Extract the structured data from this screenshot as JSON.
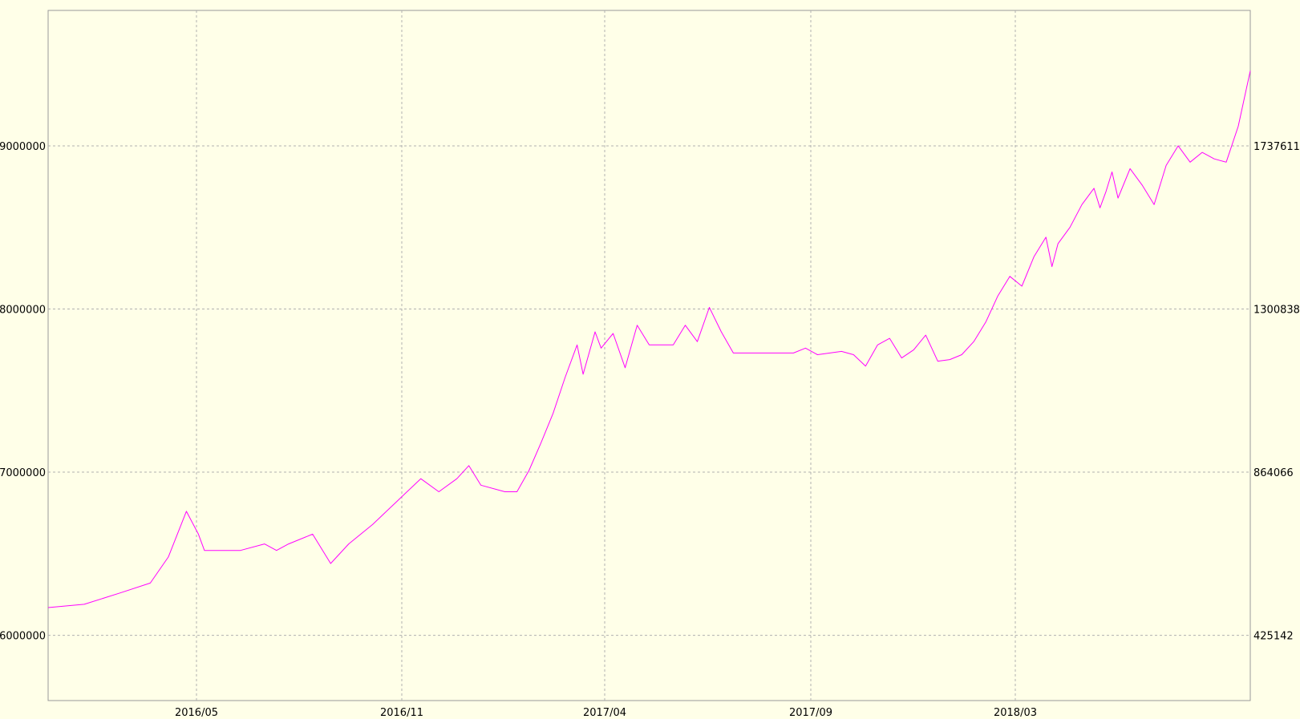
{
  "chart_data": {
    "type": "line",
    "title": "",
    "xlabel": "",
    "ylabel": "",
    "grid": true,
    "x_ticks": [
      "2016/05",
      "2016/11",
      "2017/04",
      "2017/09",
      "2018/03"
    ],
    "y_left": {
      "ticks": [
        6000000,
        7000000,
        8000000,
        9000000
      ],
      "range": [
        5600000,
        9830000
      ]
    },
    "y_right": {
      "ticks": [
        425142,
        864066,
        1300838,
        1737611
      ]
    },
    "series": [
      {
        "color": "#ff00ff",
        "width": 1,
        "axis": "left",
        "points": [
          [
            0,
            6170000
          ],
          [
            0.03,
            6190000
          ],
          [
            0.06,
            6260000
          ],
          [
            0.085,
            6320000
          ],
          [
            0.1,
            6480000
          ],
          [
            0.115,
            6760000
          ],
          [
            0.125,
            6620000
          ],
          [
            0.13,
            6520000
          ],
          [
            0.16,
            6520000
          ],
          [
            0.18,
            6560000
          ],
          [
            0.19,
            6520000
          ],
          [
            0.2,
            6560000
          ],
          [
            0.22,
            6620000
          ],
          [
            0.235,
            6440000
          ],
          [
            0.25,
            6560000
          ],
          [
            0.27,
            6680000
          ],
          [
            0.29,
            6820000
          ],
          [
            0.31,
            6960000
          ],
          [
            0.325,
            6880000
          ],
          [
            0.34,
            6960000
          ],
          [
            0.35,
            7040000
          ],
          [
            0.36,
            6920000
          ],
          [
            0.38,
            6880000
          ],
          [
            0.39,
            6880000
          ],
          [
            0.4,
            7010000
          ],
          [
            0.41,
            7180000
          ],
          [
            0.42,
            7360000
          ],
          [
            0.43,
            7580000
          ],
          [
            0.44,
            7780000
          ],
          [
            0.445,
            7600000
          ],
          [
            0.455,
            7860000
          ],
          [
            0.46,
            7760000
          ],
          [
            0.47,
            7850000
          ],
          [
            0.48,
            7640000
          ],
          [
            0.49,
            7900000
          ],
          [
            0.5,
            7780000
          ],
          [
            0.52,
            7780000
          ],
          [
            0.53,
            7900000
          ],
          [
            0.54,
            7800000
          ],
          [
            0.55,
            8010000
          ],
          [
            0.56,
            7860000
          ],
          [
            0.57,
            7730000
          ],
          [
            0.6,
            7730000
          ],
          [
            0.62,
            7730000
          ],
          [
            0.63,
            7760000
          ],
          [
            0.64,
            7720000
          ],
          [
            0.66,
            7740000
          ],
          [
            0.67,
            7720000
          ],
          [
            0.68,
            7650000
          ],
          [
            0.69,
            7780000
          ],
          [
            0.7,
            7820000
          ],
          [
            0.71,
            7700000
          ],
          [
            0.72,
            7750000
          ],
          [
            0.73,
            7840000
          ],
          [
            0.74,
            7680000
          ],
          [
            0.75,
            7690000
          ],
          [
            0.76,
            7720000
          ],
          [
            0.77,
            7800000
          ],
          [
            0.78,
            7920000
          ],
          [
            0.79,
            8080000
          ],
          [
            0.8,
            8200000
          ],
          [
            0.81,
            8140000
          ],
          [
            0.82,
            8320000
          ],
          [
            0.83,
            8440000
          ],
          [
            0.835,
            8260000
          ],
          [
            0.84,
            8400000
          ],
          [
            0.85,
            8500000
          ],
          [
            0.86,
            8640000
          ],
          [
            0.87,
            8740000
          ],
          [
            0.875,
            8620000
          ],
          [
            0.88,
            8720000
          ],
          [
            0.885,
            8840000
          ],
          [
            0.89,
            8680000
          ],
          [
            0.9,
            8860000
          ],
          [
            0.91,
            8760000
          ],
          [
            0.92,
            8640000
          ],
          [
            0.93,
            8880000
          ],
          [
            0.94,
            9000000
          ],
          [
            0.95,
            8900000
          ],
          [
            0.96,
            8960000
          ],
          [
            0.97,
            8920000
          ],
          [
            0.98,
            8900000
          ],
          [
            0.99,
            9120000
          ],
          [
            1.0,
            9460000
          ]
        ]
      }
    ]
  }
}
